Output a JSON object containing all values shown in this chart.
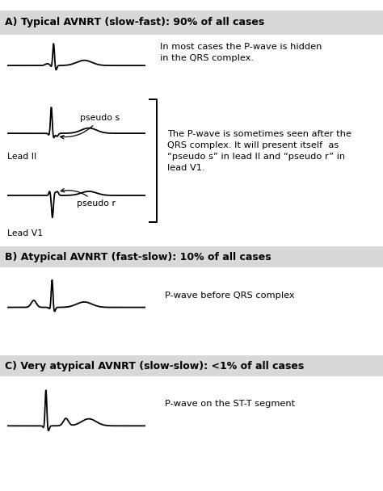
{
  "title_a": "A) Typical AVNRT (slow-fast): 90% of all cases",
  "title_b": "B) Atypical AVNRT (fast-slow): 10% of all cases",
  "title_c": "C) Very atypical AVNRT (slow-slow): <1% of all cases",
  "text_a1": "In most cases the P-wave is hidden\nin the QRS complex.",
  "text_a2": "The P-wave is sometimes seen after the\nQRS complex. It will present itself  as\n“pseudo s” in lead II and “pseudo r” in\nlead V1.",
  "text_b": "P-wave before QRS complex",
  "text_c": "P-wave on the ST-T segment",
  "label_lead2": "Lead II",
  "label_leadv1": "Lead V1",
  "label_pseudo_s": "pseudo s",
  "label_pseudo_r": "pseudo r",
  "bg_color": "#ffffff",
  "header_bg": "#d8d8d8",
  "line_color": "#000000",
  "font_size_title": 9.0,
  "font_size_text": 8.2,
  "font_size_label": 7.8
}
